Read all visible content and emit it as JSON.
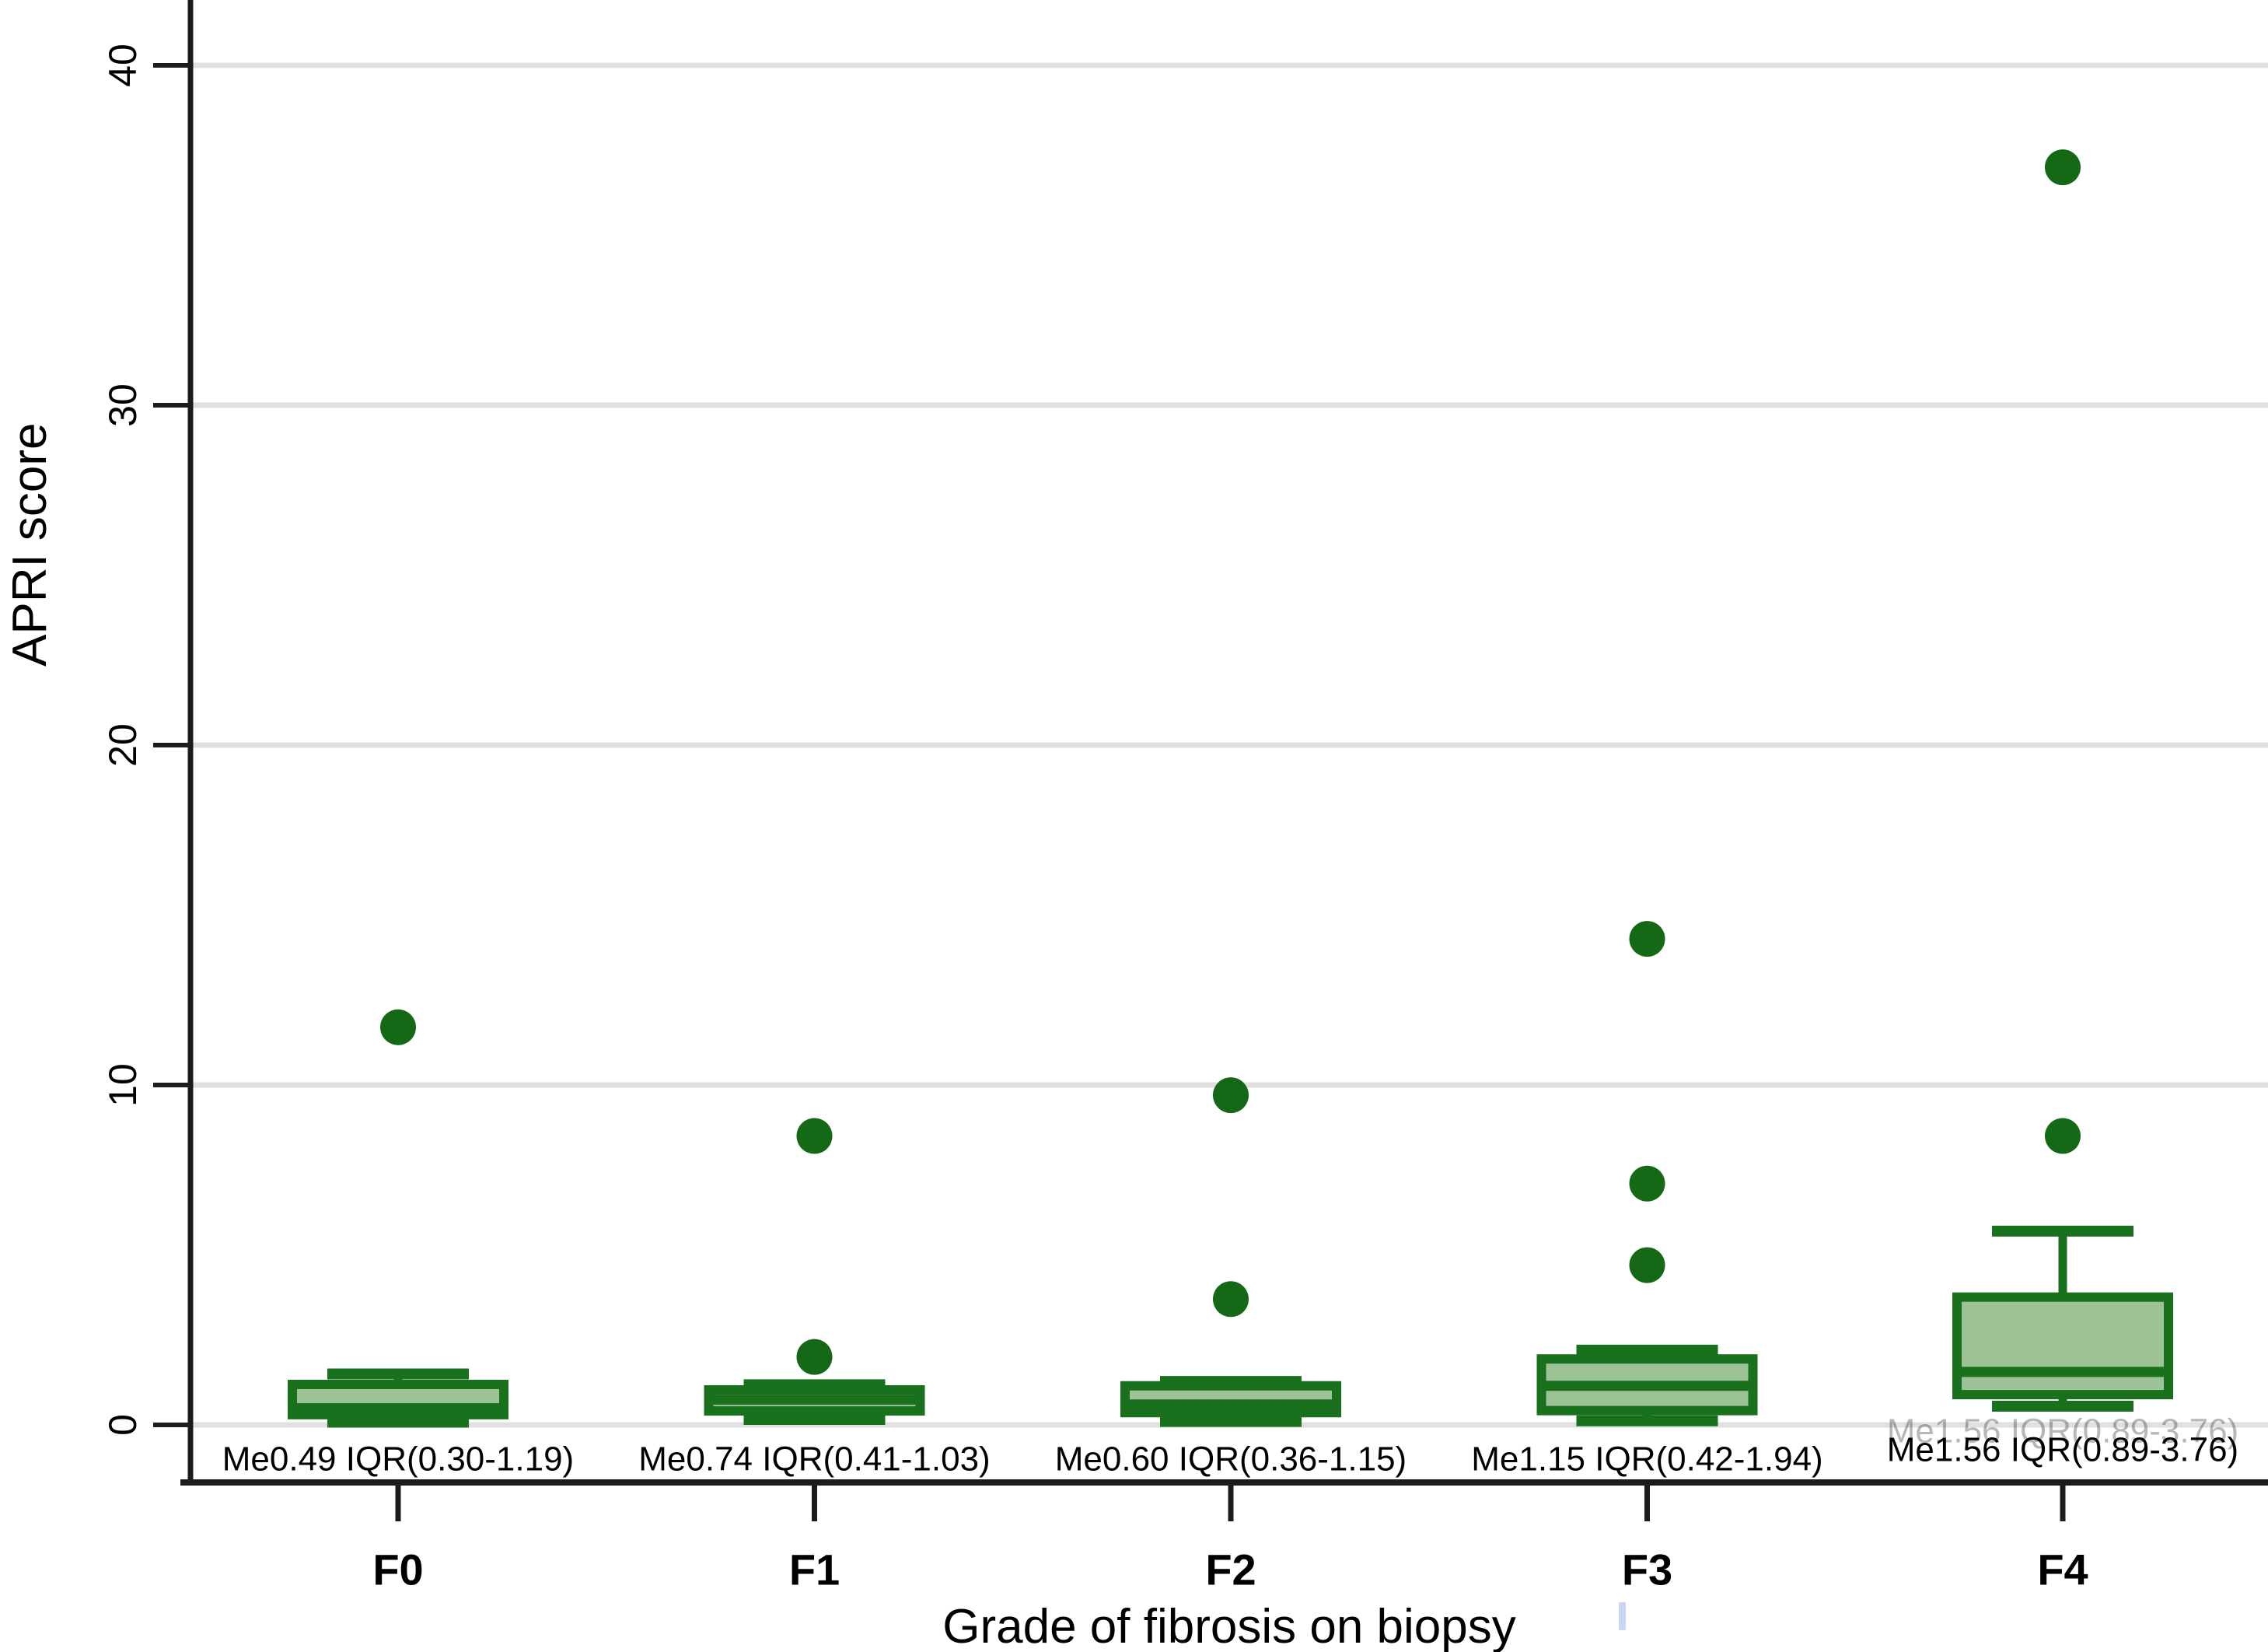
{
  "chart_data": {
    "type": "box",
    "title": "",
    "xlabel": "Grade of fibrosis on biopsy",
    "ylabel": "APRI score",
    "ylim": [
      0,
      41.9
    ],
    "yticks": [
      0,
      10,
      20,
      30,
      40
    ],
    "grid": "horizontal-gridlines",
    "legend": "none",
    "colors": {
      "box_fill": "#9cc296",
      "box_stroke": "#19701d",
      "outlier": "#156815",
      "gridline": "#e0e0e0",
      "axis": "#1c1c1c",
      "text": "#000000"
    },
    "categories": [
      "F0",
      "F1",
      "F2",
      "F3",
      "F4"
    ],
    "series": [
      {
        "category": "F0",
        "q1": 0.3,
        "median": 0.49,
        "q3": 1.19,
        "whisker_low": 0.08,
        "whisker_high": 1.5,
        "outliers": [
          11.7
        ],
        "label": "Me0.49 IQR(0.30-1.19)"
      },
      {
        "category": "F1",
        "q1": 0.41,
        "median": 0.74,
        "q3": 1.03,
        "whisker_low": 0.16,
        "whisker_high": 1.18,
        "outliers": [
          2.0,
          8.5
        ],
        "label": "Me0.74 IQR(0.41-1.03)"
      },
      {
        "category": "F2",
        "q1": 0.36,
        "median": 0.6,
        "q3": 1.15,
        "whisker_low": 0.1,
        "whisker_high": 1.28,
        "outliers": [
          3.7,
          9.7
        ],
        "label": "Me0.60 IQR(0.36-1.15)"
      },
      {
        "category": "F3",
        "q1": 0.42,
        "median": 1.15,
        "q3": 1.94,
        "whisker_low": 0.12,
        "whisker_high": 2.2,
        "outliers": [
          4.7,
          7.1,
          14.3
        ],
        "label": "Me1.15 IQR(0.42-1.94)"
      },
      {
        "category": "F4",
        "q1": 0.89,
        "median": 1.56,
        "q3": 3.76,
        "whisker_low": 0.55,
        "whisker_high": 5.7,
        "outliers": [
          8.5,
          37.0
        ],
        "label": "Me1.56 IQR(0.89-3.76)",
        "ghost": true
      }
    ]
  }
}
